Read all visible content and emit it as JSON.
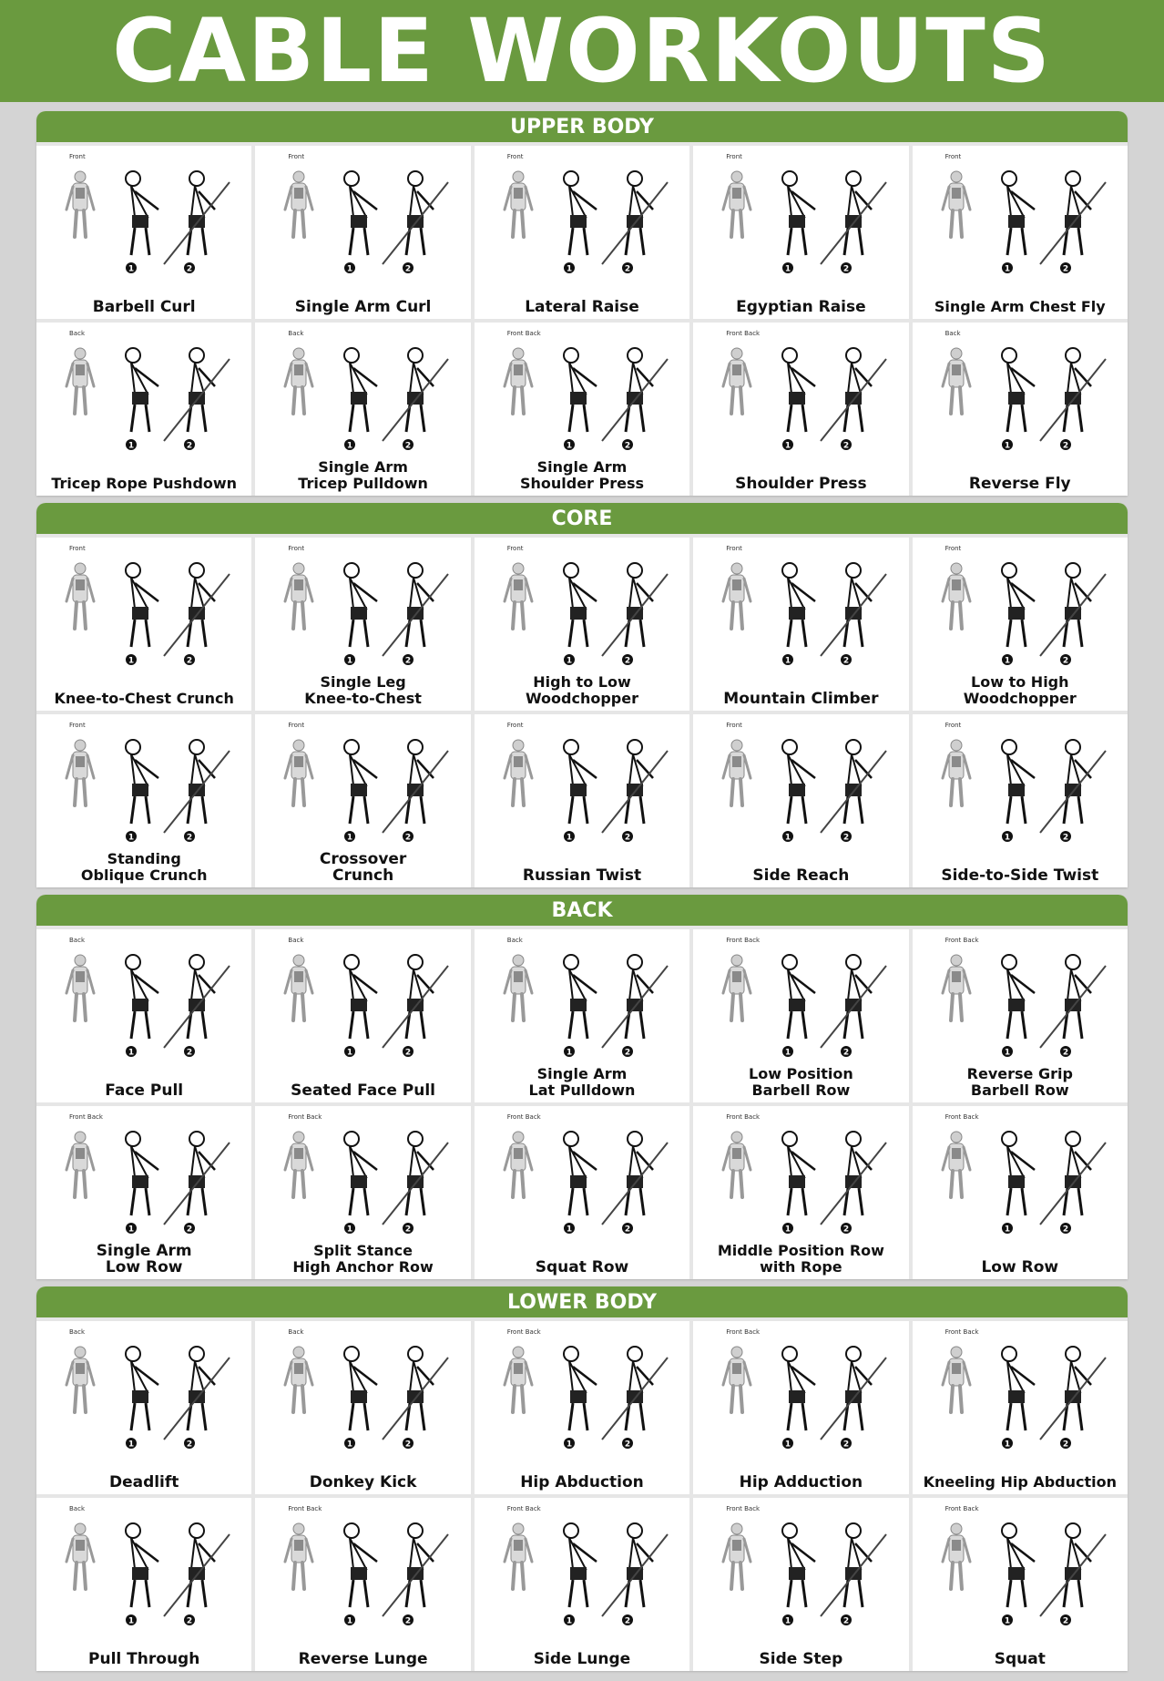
{
  "title": "CABLE WORKOUTS",
  "colors": {
    "accent": "#6a9a3f",
    "background": "#d4d4d4"
  },
  "sections": [
    {
      "heading": "UPPER BODY",
      "exercises": [
        {
          "name": "Barbell Curl",
          "view": "Front"
        },
        {
          "name": "Single Arm Curl",
          "view": "Front"
        },
        {
          "name": "Lateral Raise",
          "view": "Front"
        },
        {
          "name": "Egyptian Raise",
          "view": "Front"
        },
        {
          "name": "Single Arm Chest Fly",
          "view": "Front"
        },
        {
          "name": "Tricep Rope Pushdown",
          "view": "Back"
        },
        {
          "name": "Single Arm\nTricep Pulldown",
          "view": "Back"
        },
        {
          "name": "Single Arm\nShoulder Press",
          "view": "Front Back"
        },
        {
          "name": "Shoulder Press",
          "view": "Front Back"
        },
        {
          "name": "Reverse Fly",
          "view": "Back"
        }
      ]
    },
    {
      "heading": "CORE",
      "exercises": [
        {
          "name": "Knee-to-Chest Crunch",
          "view": "Front"
        },
        {
          "name": "Single Leg\nKnee-to-Chest",
          "view": "Front"
        },
        {
          "name": "High to Low\nWoodchopper",
          "view": "Front"
        },
        {
          "name": "Mountain Climber",
          "view": "Front"
        },
        {
          "name": "Low to High\nWoodchopper",
          "view": "Front"
        },
        {
          "name": "Standing\nOblique Crunch",
          "view": "Front"
        },
        {
          "name": "Crossover\nCrunch",
          "view": "Front"
        },
        {
          "name": "Russian Twist",
          "view": "Front"
        },
        {
          "name": "Side Reach",
          "view": "Front"
        },
        {
          "name": "Side-to-Side Twist",
          "view": "Front"
        }
      ]
    },
    {
      "heading": "BACK",
      "exercises": [
        {
          "name": "Face Pull",
          "view": "Back"
        },
        {
          "name": "Seated Face Pull",
          "view": "Back"
        },
        {
          "name": "Single Arm\nLat Pulldown",
          "view": "Back"
        },
        {
          "name": "Low Position\nBarbell Row",
          "view": "Front Back"
        },
        {
          "name": "Reverse Grip\nBarbell Row",
          "view": "Front Back"
        },
        {
          "name": "Single Arm\nLow Row",
          "view": "Front Back"
        },
        {
          "name": "Split Stance\nHigh Anchor Row",
          "view": "Front Back"
        },
        {
          "name": "Squat Row",
          "view": "Front Back"
        },
        {
          "name": "Middle Position Row\nwith Rope",
          "view": "Front Back"
        },
        {
          "name": "Low Row",
          "view": "Front Back"
        }
      ]
    },
    {
      "heading": "LOWER BODY",
      "exercises": [
        {
          "name": "Deadlift",
          "view": "Back"
        },
        {
          "name": "Donkey Kick",
          "view": "Back"
        },
        {
          "name": "Hip Abduction",
          "view": "Front Back"
        },
        {
          "name": "Hip Adduction",
          "view": "Front Back"
        },
        {
          "name": "Kneeling Hip Abduction",
          "view": "Front Back"
        },
        {
          "name": "Pull Through",
          "view": "Back"
        },
        {
          "name": "Reverse Lunge",
          "view": "Front Back"
        },
        {
          "name": "Side Lunge",
          "view": "Front Back"
        },
        {
          "name": "Side Step",
          "view": "Front Back"
        },
        {
          "name": "Squat",
          "view": "Front Back"
        }
      ]
    }
  ]
}
